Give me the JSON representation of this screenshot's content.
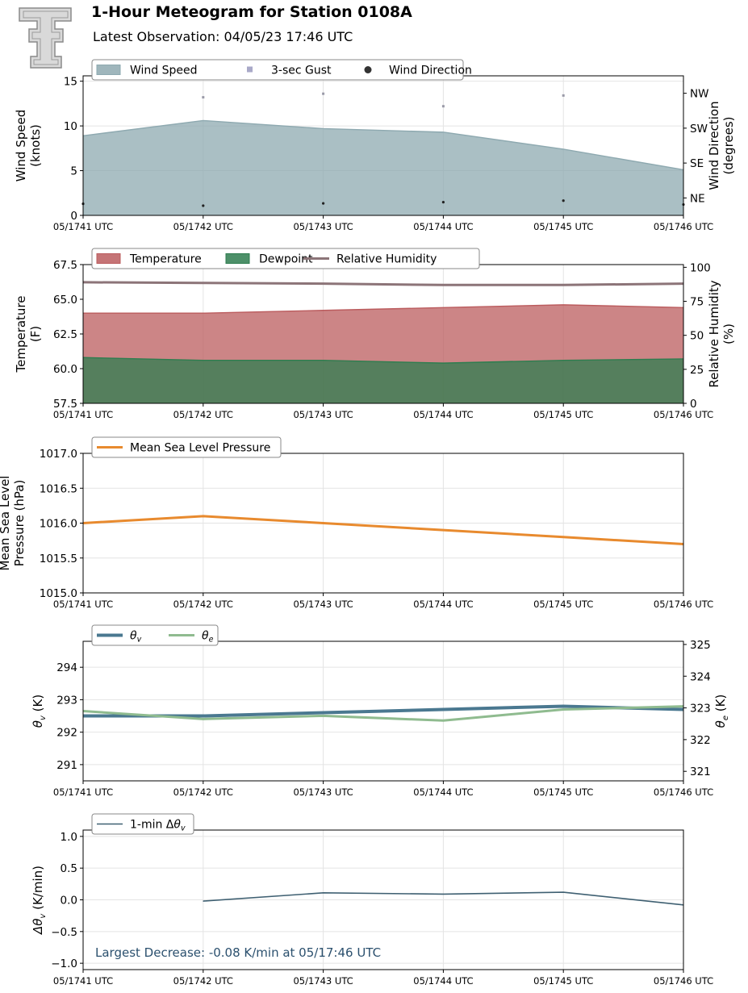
{
  "header": {
    "title": "1-Hour Meteogram for Station 0108A",
    "subtitle": "Latest Observation: 04/05/23 17:46 UTC"
  },
  "colors": {
    "wind_speed": "#8ea9b0",
    "gust": "#a9a9c8",
    "wind_dir": "#222222",
    "temperature": "#bb5c5e",
    "dewpoint": "#2e7d4f",
    "rh": "#8c7478",
    "mslp": "#e88a2e",
    "theta_v": "#4a7890",
    "theta_e": "#8fbb8f",
    "dtheta": "#3f6072",
    "annotation": "#2b506e"
  },
  "chart_data": [
    {
      "type": "area",
      "x": [
        "05/1741 UTC",
        "05/1742 UTC",
        "05/1743 UTC",
        "05/1744 UTC",
        "05/1745 UTC",
        "05/1746 UTC"
      ],
      "ylabel": [
        "Wind Speed",
        "(knots)"
      ],
      "ylim": [
        0,
        15.6
      ],
      "yticks": [
        "0",
        "5",
        "10",
        "15"
      ],
      "y2label": [
        "Wind Direction",
        "(degrees)"
      ],
      "y2lim": [
        0,
        360
      ],
      "y2ticks": [
        {
          "value": 45,
          "label": "NE"
        },
        {
          "value": 135,
          "label": "SE"
        },
        {
          "value": 225,
          "label": "SW"
        },
        {
          "value": 315,
          "label": "NW"
        }
      ],
      "series": [
        {
          "name": "Wind Speed",
          "kind": "area",
          "values": [
            8.9,
            10.6,
            9.7,
            9.3,
            7.4,
            5.1
          ]
        },
        {
          "name": "3-sec Gust",
          "kind": "square",
          "values": [
            null,
            13.2,
            13.6,
            12.2,
            13.4,
            null
          ]
        },
        {
          "name": "Wind Direction",
          "kind": "dot",
          "axis": "y2",
          "values": [
            30,
            25,
            31,
            34,
            38,
            28
          ]
        }
      ],
      "legend": "top-left",
      "grid": true
    },
    {
      "type": "area",
      "x": [
        "05/1741 UTC",
        "05/1742 UTC",
        "05/1743 UTC",
        "05/1744 UTC",
        "05/1745 UTC",
        "05/1746 UTC"
      ],
      "ylabel": [
        "Temperature",
        "(F)"
      ],
      "ylim": [
        57.5,
        67.5
      ],
      "yticks": [
        "57.5",
        "60.0",
        "62.5",
        "65.0",
        "67.5"
      ],
      "y2label": [
        "Relative Humidity",
        "(%)"
      ],
      "y2lim": [
        0,
        102
      ],
      "y2ticks": [
        {
          "value": 0,
          "label": "0"
        },
        {
          "value": 25,
          "label": "25"
        },
        {
          "value": 50,
          "label": "50"
        },
        {
          "value": 75,
          "label": "75"
        },
        {
          "value": 100,
          "label": "100"
        }
      ],
      "series": [
        {
          "name": "Temperature",
          "kind": "area",
          "values": [
            64.0,
            64.0,
            64.2,
            64.4,
            64.6,
            64.4
          ]
        },
        {
          "name": "Dewpoint",
          "kind": "area",
          "values": [
            60.8,
            60.6,
            60.6,
            60.4,
            60.6,
            60.7
          ]
        },
        {
          "name": "Relative Humidity",
          "kind": "line",
          "axis": "y2",
          "values": [
            89,
            88.5,
            88,
            87,
            87,
            88
          ]
        }
      ],
      "legend": "top-left",
      "grid": false
    },
    {
      "type": "line",
      "x": [
        "05/1741 UTC",
        "05/1742 UTC",
        "05/1743 UTC",
        "05/1744 UTC",
        "05/1745 UTC",
        "05/1746 UTC"
      ],
      "ylabel": [
        "Mean Sea Level",
        "Pressure (hPa)"
      ],
      "ylim": [
        1015.0,
        1017.0
      ],
      "yticks": [
        "1015.0",
        "1015.5",
        "1016.0",
        "1016.5",
        "1017.0"
      ],
      "series": [
        {
          "name": "Mean Sea Level Pressure",
          "kind": "line",
          "values": [
            1016.0,
            1016.1,
            1016.0,
            1015.9,
            1015.8,
            1015.7
          ]
        }
      ],
      "legend": "top-left",
      "grid": true
    },
    {
      "type": "line",
      "x": [
        "05/1741 UTC",
        "05/1742 UTC",
        "05/1743 UTC",
        "05/1744 UTC",
        "05/1745 UTC",
        "05/1746 UTC"
      ],
      "ylabel": [
        "θv (K)"
      ],
      "ylim": [
        290.5,
        294.8
      ],
      "yticks": [
        "291",
        "292",
        "293",
        "294"
      ],
      "y2label": [
        "θe (K)"
      ],
      "y2lim": [
        320.7,
        325.1
      ],
      "y2ticks": [
        {
          "value": 321,
          "label": "321"
        },
        {
          "value": 322,
          "label": "322"
        },
        {
          "value": 323,
          "label": "323"
        },
        {
          "value": 324,
          "label": "324"
        },
        {
          "value": 325,
          "label": "325"
        }
      ],
      "series": [
        {
          "name": "θv",
          "kind": "line",
          "values": [
            292.5,
            292.5,
            292.6,
            292.7,
            292.8,
            292.7
          ]
        },
        {
          "name": "θe",
          "kind": "line",
          "axis": "y2",
          "values": [
            322.9,
            322.65,
            322.75,
            322.6,
            322.95,
            323.05
          ]
        }
      ],
      "legend": "top-left",
      "grid": true
    },
    {
      "type": "line",
      "x": [
        "05/1741 UTC",
        "05/1742 UTC",
        "05/1743 UTC",
        "05/1744 UTC",
        "05/1745 UTC",
        "05/1746 UTC"
      ],
      "ylabel": [
        "Δθv (K/min)"
      ],
      "ylim": [
        -1.1,
        1.1
      ],
      "yticks": [
        "−1.0",
        "−0.5",
        "0.0",
        "0.5",
        "1.0"
      ],
      "series": [
        {
          "name": "1-min Δθv",
          "kind": "line",
          "values": [
            null,
            -0.02,
            0.11,
            0.09,
            0.12,
            -0.08
          ]
        }
      ],
      "annotation": "Largest Decrease: -0.08 K/min at 05/17:46 UTC",
      "legend": "top-left",
      "grid": true
    }
  ]
}
